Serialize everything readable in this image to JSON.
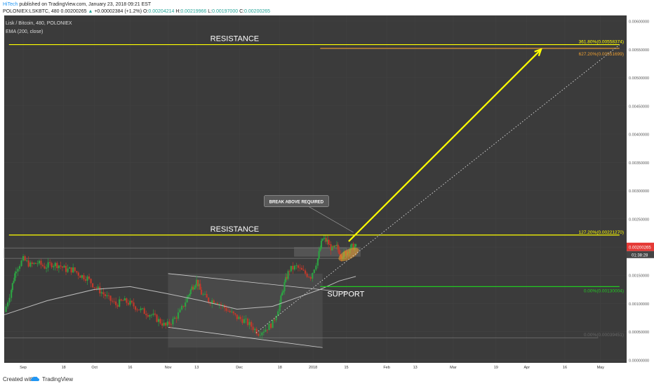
{
  "header": {
    "author": "HiTech",
    "published": "published on TradingView.com, January 23, 2018 09:21 EST",
    "symbol": "POLONIEX:LSKBTC, 480",
    "price": "0.00200265",
    "change": "+0.00002384 (+1.2%)",
    "o_label": "O:",
    "o_value": "0.00204214",
    "h_label": "H:",
    "h_value": "0.00219966",
    "l_label": "L:",
    "l_value": "0.00197000",
    "c_label": "C:",
    "c_value": "0.00200265"
  },
  "footer": {
    "created_with": "Created with",
    "brand": "TradingView"
  },
  "colors": {
    "background": "#3b3b3b",
    "resistance": "#ffff00",
    "support": "#22c922",
    "fib_orange": "#f0a030",
    "candle_up": "#2ea043",
    "candle_down": "#c0392b",
    "ema": "#bbbbbb"
  },
  "chart_data": {
    "type": "candlestick",
    "title": "Lisk / Bitcoin, 480, POLONIEX",
    "indicator": "EMA (200, close)",
    "x_ticks": [
      "Sep",
      "18",
      "Oct",
      "16",
      "Nov",
      "13",
      "Dec",
      "18",
      "2018",
      "15",
      "Feb",
      "13",
      "Mar",
      "19",
      "Apr",
      "16",
      "May"
    ],
    "x_tick_days": [
      0,
      17,
      30,
      45,
      61,
      73,
      91,
      108,
      122,
      136,
      153,
      165,
      181,
      199,
      212,
      228,
      243
    ],
    "y_ticks": [
      "0.00000000",
      "0.00050000",
      "0.00100000",
      "0.00150000",
      "0.00200000",
      "0.00250000",
      "0.00300000",
      "0.00350000",
      "0.00400000",
      "0.00450000",
      "0.00500000",
      "0.00550000",
      "0.00600000"
    ],
    "y_tick_values": [
      0,
      0.0005,
      0.001,
      0.0015,
      0.002,
      0.0025,
      0.003,
      0.0035,
      0.004,
      0.0045,
      0.005,
      0.0055,
      0.006
    ],
    "ylim": [
      -5e-05,
      0.0061
    ],
    "xlim": [
      -8,
      254
    ],
    "last_price_label": "0.00200265",
    "countdown_label": "01:38:28",
    "annotations": {
      "resistance_top": "RESISTANCE",
      "resistance_mid": "RESISTANCE",
      "support": "SUPPORT",
      "callout": "BREAK ABOVE REQUIRED"
    },
    "fib_levels": [
      {
        "label": "361.80%(0.00558374)",
        "value": 0.00558374,
        "color": "#ffff00"
      },
      {
        "label": "627.20%(0.00551699)",
        "value": 0.00551699,
        "color": "#f0a030"
      },
      {
        "label": "127.20%(0.00221270)",
        "value": 0.0022127,
        "color": "#ffff00"
      },
      {
        "label": "0.00%(0.00130004)",
        "value": 0.00130004,
        "color": "#22c922"
      },
      {
        "label": "0.00%(0.00039451)",
        "value": 0.00039451,
        "color": "#666666"
      }
    ],
    "price_path": [
      [
        -8,
        0.00085
      ],
      [
        -5,
        0.00125
      ],
      [
        -3,
        0.00162
      ],
      [
        0,
        0.00178
      ],
      [
        3,
        0.00168
      ],
      [
        6,
        0.00172
      ],
      [
        9,
        0.00165
      ],
      [
        12,
        0.0017
      ],
      [
        15,
        0.00168
      ],
      [
        18,
        0.0016
      ],
      [
        21,
        0.0016
      ],
      [
        24,
        0.0015
      ],
      [
        27,
        0.00145
      ],
      [
        30,
        0.0013
      ],
      [
        33,
        0.0012
      ],
      [
        36,
        0.00108
      ],
      [
        39,
        0.00098
      ],
      [
        42,
        0.00105
      ],
      [
        45,
        0.001
      ],
      [
        48,
        0.00092
      ],
      [
        51,
        0.00085
      ],
      [
        54,
        0.0008
      ],
      [
        57,
        0.0007
      ],
      [
        60,
        0.0006
      ],
      [
        63,
        0.0007
      ],
      [
        66,
        0.00085
      ],
      [
        69,
        0.0011
      ],
      [
        71,
        0.00128
      ],
      [
        73,
        0.0014
      ],
      [
        75,
        0.00118
      ],
      [
        78,
        0.00105
      ],
      [
        81,
        0.00105
      ],
      [
        84,
        0.00095
      ],
      [
        87,
        0.00085
      ],
      [
        90,
        0.00075
      ],
      [
        93,
        0.0007
      ],
      [
        96,
        0.0006
      ],
      [
        99,
        0.00048
      ],
      [
        102,
        0.00055
      ],
      [
        105,
        0.00065
      ],
      [
        108,
        0.001
      ],
      [
        110,
        0.00135
      ],
      [
        112,
        0.0016
      ],
      [
        115,
        0.00165
      ],
      [
        118,
        0.00155
      ],
      [
        121,
        0.00148
      ],
      [
        124,
        0.0018
      ],
      [
        126,
        0.00215
      ],
      [
        128,
        0.0021
      ],
      [
        130,
        0.00195
      ],
      [
        132,
        0.002
      ],
      [
        134,
        0.00185
      ],
      [
        136,
        0.0019
      ],
      [
        138,
        0.002
      ],
      [
        140,
        0.002
      ]
    ],
    "ema_path": [
      [
        -8,
        0.0008
      ],
      [
        10,
        0.00105
      ],
      [
        30,
        0.00125
      ],
      [
        45,
        0.0013
      ],
      [
        60,
        0.00118
      ],
      [
        75,
        0.00105
      ],
      [
        90,
        0.0009
      ],
      [
        105,
        0.00095
      ],
      [
        115,
        0.0011
      ],
      [
        125,
        0.00125
      ],
      [
        133,
        0.0014
      ],
      [
        140,
        0.00148
      ]
    ]
  }
}
